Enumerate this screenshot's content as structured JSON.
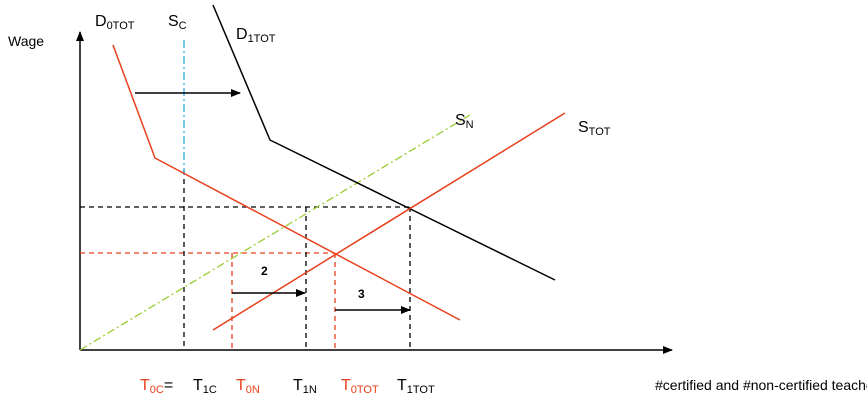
{
  "axes": {
    "y_label": "Wage",
    "x_label": "#certified and #non-certified teachers"
  },
  "curves": [
    {
      "main": "D",
      "sub": "0TOT"
    },
    {
      "main": "S",
      "sub": "C"
    },
    {
      "main": "D",
      "sub": "1TOT"
    },
    {
      "main": "S",
      "sub": "N"
    },
    {
      "main": "S",
      "sub": "TOT"
    }
  ],
  "arrow_labels": [
    "2",
    "3"
  ],
  "quantities": [
    {
      "main": "T",
      "sub": "0C",
      "suffix": "="
    },
    {
      "main": "T",
      "sub": "1C"
    },
    {
      "main": "T",
      "sub": "0N"
    },
    {
      "main": "T",
      "sub": "1N"
    },
    {
      "main": "T",
      "sub": "0TOT"
    },
    {
      "main": "T",
      "sub": "1TOT"
    }
  ]
}
